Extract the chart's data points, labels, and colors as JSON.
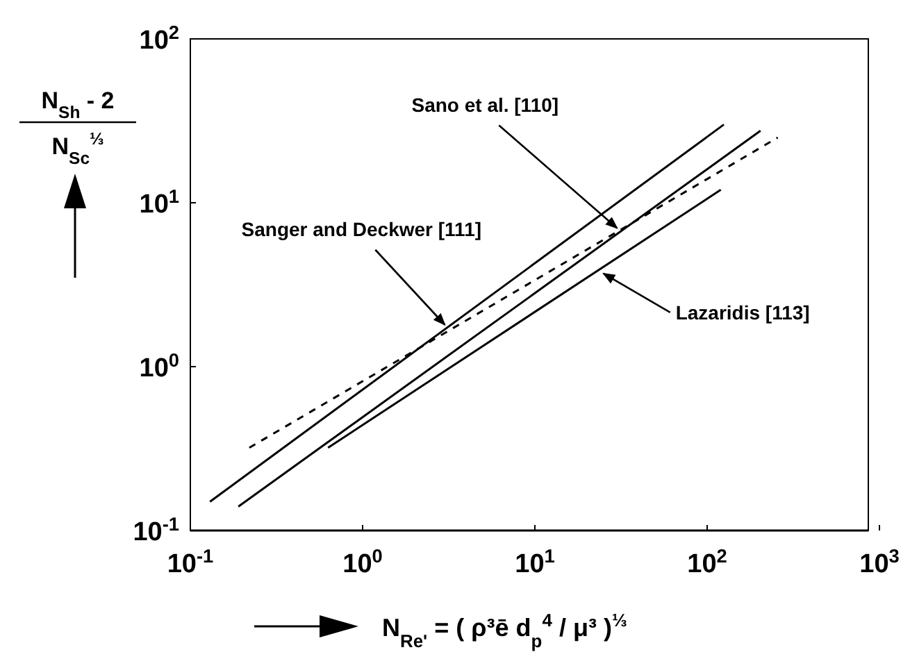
{
  "chart_data": {
    "type": "line",
    "xlabel": "N$_{Re'}$ = ( ρ³ē d$_{p}$$^{4}$ / μ³ )$^{⅓}$",
    "ylabel": "N$_{Sh}$ - 2\nN$_{Sc}$$^{⅓}$",
    "log": "xy",
    "grid": false,
    "marker": "none",
    "xlim": [
      0.1,
      1000
    ],
    "ylim": [
      0.1,
      100
    ],
    "xticks": [
      {
        "value": 0.1,
        "label": "10$^{-1}$"
      },
      {
        "value": 1,
        "label": "10$^{0}$"
      },
      {
        "value": 10,
        "label": "10$^{1}$"
      },
      {
        "value": 100,
        "label": "10$^{2}$"
      },
      {
        "value": 1000,
        "label": "10$^{3}$"
      }
    ],
    "yticks": [
      {
        "value": 0.1,
        "label": "10$^{-1}$"
      },
      {
        "value": 1,
        "label": "10$^{0}$"
      },
      {
        "value": 10,
        "label": "10$^{1}$"
      },
      {
        "value": 100,
        "label": "10$^{2}$"
      }
    ],
    "series": [
      {
        "color": "#000000",
        "line_style": "solid",
        "x": [
          0.13,
          125
        ],
        "values": [
          0.15,
          30
        ]
      },
      {
        "color": "#000000",
        "line_style": "solid",
        "x": [
          0.19,
          204
        ],
        "values": [
          0.14,
          27.5
        ]
      },
      {
        "color": "#000000",
        "line_style": "solid",
        "x": [
          0.63,
          120
        ],
        "values": [
          0.32,
          12
        ]
      },
      {
        "color": "#000000",
        "line_style": "dashed",
        "x": [
          0.22,
          257
        ],
        "values": [
          0.32,
          25
        ]
      }
    ],
    "annotations": [
      {
        "text": "Sanger and Deckwer [111]",
        "x": 3.0,
        "y": 1.8
      },
      {
        "text": "Sano et al. [110]",
        "x": 30,
        "y": 7
      },
      {
        "text": "Lazaridis [113]",
        "x": 25,
        "y": 3.7
      }
    ]
  }
}
